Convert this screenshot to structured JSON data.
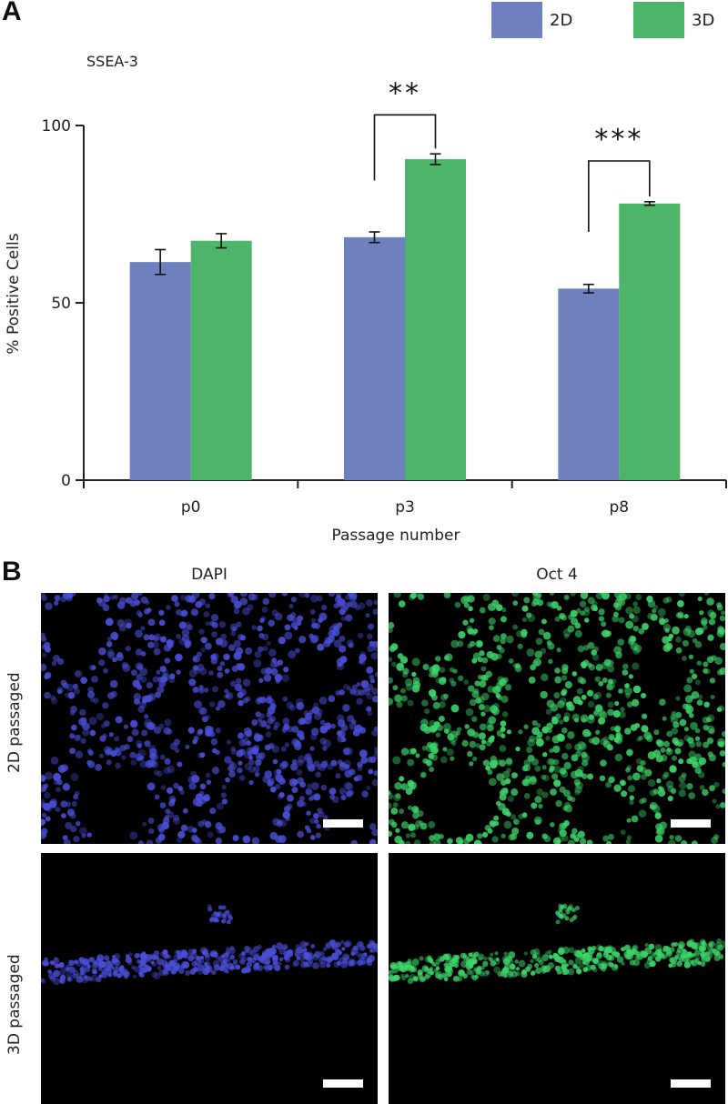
{
  "panel_a": {
    "letter": "A",
    "subtitle": "SSEA-3",
    "legend": [
      {
        "label": "2D",
        "color": "#6f80bf"
      },
      {
        "label": "3D",
        "color": "#4db56a"
      }
    ]
  },
  "chart_data": {
    "type": "bar",
    "title": "SSEA-3",
    "xlabel": "Passage number",
    "ylabel": "% Positive Cells",
    "categories": [
      "p0",
      "p3",
      "p8"
    ],
    "ylim": [
      0,
      100
    ],
    "yticks": [
      0,
      50,
      100
    ],
    "series": [
      {
        "name": "2D",
        "color": "#6f80bf",
        "values": [
          61.5,
          68.5,
          54
        ],
        "errors": [
          3.5,
          1.5,
          1.2
        ]
      },
      {
        "name": "3D",
        "color": "#4db56a",
        "values": [
          67.5,
          90.5,
          78
        ],
        "errors": [
          2,
          1.5,
          0.5
        ]
      }
    ],
    "significance": [
      {
        "category": "p3",
        "label": "**",
        "bracket_level": 103
      },
      {
        "category": "p8",
        "label": "***",
        "bracket_level": 90
      }
    ],
    "legend_position": "top-right",
    "grid": false
  },
  "panel_b": {
    "letter": "B",
    "columns": [
      "DAPI",
      "Oct 4"
    ],
    "rows": [
      "2D passaged",
      "3D passaged"
    ],
    "images": [
      {
        "stain": "DAPI",
        "condition": "2D passaged",
        "color": "#4a4fd8"
      },
      {
        "stain": "Oct 4",
        "condition": "2D passaged",
        "color": "#3ed46a"
      },
      {
        "stain": "DAPI",
        "condition": "3D passaged",
        "color": "#4a4fd8"
      },
      {
        "stain": "Oct 4",
        "condition": "3D passaged",
        "color": "#3ed46a"
      }
    ]
  }
}
